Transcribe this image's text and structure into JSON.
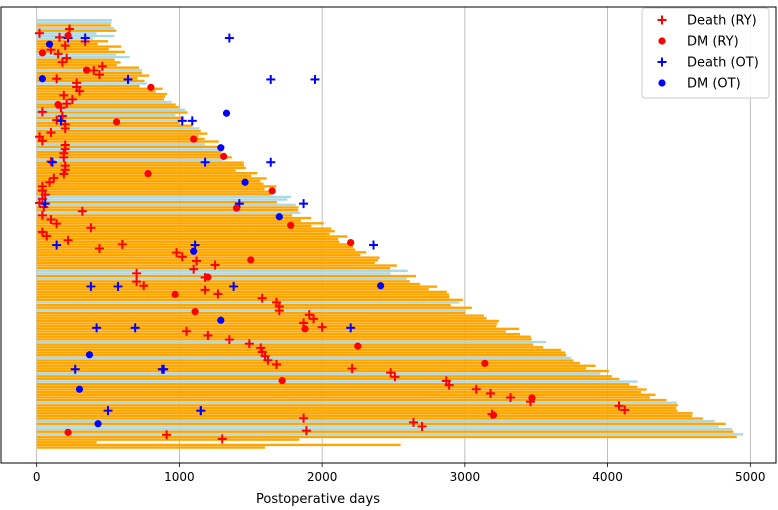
{
  "chart_data": {
    "type": "horizontal-bar-event-plot",
    "xlabel": "Postoperative days",
    "xlim": [
      -250,
      5180
    ],
    "ylim": [
      0,
      1
    ],
    "xticks": [
      0,
      1000,
      2000,
      3000,
      4000,
      5000
    ],
    "xtick_labels": [
      "0",
      "1000",
      "2000",
      "3000",
      "4000",
      "5000"
    ],
    "grid_x": true,
    "legend_position": "top-right",
    "legend": [
      {
        "label": "Death (RY)",
        "marker": "plus",
        "color": "#ff0000"
      },
      {
        "label": "DM (RY)",
        "marker": "dot",
        "color": "#ff0000"
      },
      {
        "label": "Death (OT)",
        "marker": "plus",
        "color": "#0000ff"
      },
      {
        "label": "DM (OT)",
        "marker": "dot",
        "color": "#0000ff"
      }
    ],
    "series_colors": {
      "RY": "#ffa500",
      "OT": "#add8e6"
    },
    "bars_note": "Approximately 420 follow-up bars (orange = RY, light blue = OT) stacked from top to bottom; follow-up length rises from about 300 to 4950 days.",
    "death_ry_days": [
      230,
      20,
      160,
      340,
      200,
      100,
      150,
      210,
      180,
      460,
      400,
      440,
      140,
      280,
      280,
      300,
      190,
      250,
      210,
      170,
      40,
      180,
      140,
      200,
      200,
      100,
      20,
      40,
      200,
      200,
      190,
      190,
      100,
      200,
      200,
      190,
      120,
      90,
      40,
      40,
      60,
      40,
      20,
      50,
      320,
      40,
      100,
      140,
      380,
      40,
      70,
      220,
      600,
      440,
      980,
      1020,
      1120,
      1250,
      1100,
      700,
      1180,
      700,
      750,
      1180,
      1270,
      1580,
      1680,
      1700,
      1700,
      1910,
      1940,
      1870,
      2000,
      1050,
      1200,
      1350,
      1490,
      1570,
      1580,
      1600,
      1620,
      1680,
      2210,
      2480,
      2510,
      2870,
      2890,
      3080,
      3180,
      3320,
      3460,
      4080,
      4120,
      3190,
      1870,
      2640,
      2700,
      1890,
      910,
      1300
    ],
    "dm_ry_days": [
      220,
      40,
      350,
      800,
      150,
      560,
      1100,
      1310,
      780,
      1650,
      1400,
      1780,
      2200,
      1500,
      1200,
      970,
      1110,
      1880,
      2250,
      3140,
      1720,
      3470,
      3200,
      220
    ],
    "death_ot_days": [
      340,
      640,
      170,
      1640,
      1870,
      2360,
      570,
      690,
      880,
      1150,
      1350,
      1640,
      1090,
      110,
      60,
      1110,
      1380,
      2200,
      890,
      1150,
      220,
      1950,
      1020,
      1180,
      1420,
      140,
      380,
      420,
      270,
      500
    ],
    "dm_ot_days": [
      90,
      40,
      1330,
      1290,
      1460,
      1700,
      1100,
      2410,
      1290,
      370,
      300,
      430
    ],
    "bar_rows": [
      {
        "length": 527,
        "color": "OT"
      },
      {
        "length": 523,
        "color": "OT"
      },
      {
        "length": 519,
        "color": "RY"
      },
      {
        "length": 543,
        "color": "OT"
      },
      {
        "length": 558,
        "color": "RY"
      },
      {
        "length": 419,
        "color": "OT"
      },
      {
        "length": 544,
        "color": "OT"
      },
      {
        "length": 397,
        "color": "OT"
      },
      {
        "length": 500,
        "color": "RY"
      },
      {
        "length": 428,
        "color": "RY"
      },
      {
        "length": 592,
        "color": "RY"
      },
      {
        "length": 505,
        "color": "RY"
      },
      {
        "length": 618,
        "color": "RY"
      },
      {
        "length": 558,
        "color": "OT"
      },
      {
        "length": 651,
        "color": "OT"
      },
      {
        "length": 546,
        "color": "RY"
      },
      {
        "length": 588,
        "color": "RY"
      },
      {
        "length": 561,
        "color": "RY"
      },
      {
        "length": 717,
        "color": "RY"
      },
      {
        "length": 737,
        "color": "OT"
      },
      {
        "length": 737,
        "color": "RY"
      },
      {
        "length": 788,
        "color": "RY"
      },
      {
        "length": 706,
        "color": "RY"
      },
      {
        "length": 755,
        "color": "RY"
      },
      {
        "length": 772,
        "color": "OT"
      },
      {
        "length": 721,
        "color": "RY"
      },
      {
        "length": 882,
        "color": "RY"
      },
      {
        "length": 834,
        "color": "RY"
      },
      {
        "length": 913,
        "color": "RY"
      },
      {
        "length": 899,
        "color": "RY"
      },
      {
        "length": 892,
        "color": "RY"
      },
      {
        "length": 945,
        "color": "OT"
      },
      {
        "length": 974,
        "color": "RY"
      },
      {
        "length": 996,
        "color": "RY"
      },
      {
        "length": 1042,
        "color": "OT"
      },
      {
        "length": 1057,
        "color": "RY"
      },
      {
        "length": 972,
        "color": "OT"
      },
      {
        "length": 1030,
        "color": "RY"
      },
      {
        "length": 1038,
        "color": "OT"
      },
      {
        "length": 996,
        "color": "RY"
      },
      {
        "length": 1092,
        "color": "RY"
      },
      {
        "length": 1141,
        "color": "OT"
      },
      {
        "length": 1150,
        "color": "RY"
      },
      {
        "length": 1196,
        "color": "RY"
      },
      {
        "length": 1135,
        "color": "RY"
      },
      {
        "length": 1177,
        "color": "RY"
      },
      {
        "length": 1275,
        "color": "RY"
      },
      {
        "length": 1179,
        "color": "OT"
      },
      {
        "length": 1316,
        "color": "RY"
      },
      {
        "length": 1308,
        "color": "OT"
      },
      {
        "length": 1293,
        "color": "RY"
      },
      {
        "length": 1322,
        "color": "RY"
      },
      {
        "length": 1367,
        "color": "RY"
      },
      {
        "length": 1308,
        "color": "OT"
      },
      {
        "length": 1451,
        "color": "RY"
      },
      {
        "length": 1452,
        "color": "RY"
      },
      {
        "length": 1466,
        "color": "RY"
      },
      {
        "length": 1394,
        "color": "RY"
      },
      {
        "length": 1545,
        "color": "RY"
      },
      {
        "length": 1503,
        "color": "RY"
      },
      {
        "length": 1611,
        "color": "RY"
      },
      {
        "length": 1567,
        "color": "RY"
      },
      {
        "length": 1589,
        "color": "RY"
      },
      {
        "length": 1679,
        "color": "RY"
      },
      {
        "length": 1596,
        "color": "RY"
      },
      {
        "length": 1656,
        "color": "RY"
      },
      {
        "length": 1644,
        "color": "RY"
      },
      {
        "length": 1783,
        "color": "OT"
      },
      {
        "length": 1756,
        "color": "OT"
      },
      {
        "length": 1683,
        "color": "RY"
      },
      {
        "length": 1815,
        "color": "OT"
      },
      {
        "length": 1834,
        "color": "RY"
      },
      {
        "length": 1832,
        "color": "RY"
      },
      {
        "length": 1848,
        "color": "OT"
      },
      {
        "length": 1790,
        "color": "RY"
      },
      {
        "length": 1923,
        "color": "RY"
      },
      {
        "length": 1851,
        "color": "RY"
      },
      {
        "length": 2012,
        "color": "RY"
      },
      {
        "length": 1925,
        "color": "RY"
      },
      {
        "length": 2064,
        "color": "RY"
      },
      {
        "length": 2088,
        "color": "RY"
      },
      {
        "length": 2052,
        "color": "RY"
      },
      {
        "length": 2178,
        "color": "RY"
      },
      {
        "length": 2111,
        "color": "RY"
      },
      {
        "length": 2121,
        "color": "RY"
      },
      {
        "length": 2214,
        "color": "RY"
      },
      {
        "length": 2217,
        "color": "RY"
      },
      {
        "length": 2232,
        "color": "RY"
      },
      {
        "length": 2309,
        "color": "RY"
      },
      {
        "length": 2268,
        "color": "RY"
      },
      {
        "length": 2402,
        "color": "RY"
      },
      {
        "length": 2391,
        "color": "RY"
      },
      {
        "length": 2369,
        "color": "RY"
      },
      {
        "length": 2524,
        "color": "RY"
      },
      {
        "length": 2477,
        "color": "RY"
      },
      {
        "length": 2600,
        "color": "OT"
      },
      {
        "length": 2479,
        "color": "OT"
      },
      {
        "length": 2658,
        "color": "RY"
      },
      {
        "length": 2592,
        "color": "OT"
      },
      {
        "length": 2614,
        "color": "RY"
      },
      {
        "length": 2687,
        "color": "RY"
      },
      {
        "length": 2805,
        "color": "RY"
      },
      {
        "length": 2747,
        "color": "RY"
      },
      {
        "length": 2873,
        "color": "RY"
      },
      {
        "length": 2889,
        "color": "RY"
      },
      {
        "length": 2891,
        "color": "RY"
      },
      {
        "length": 2986,
        "color": "RY"
      },
      {
        "length": 2962,
        "color": "OT"
      },
      {
        "length": 2901,
        "color": "RY"
      },
      {
        "length": 3049,
        "color": "RY"
      },
      {
        "length": 3009,
        "color": "OT"
      },
      {
        "length": 3004,
        "color": "RY"
      },
      {
        "length": 3134,
        "color": "RY"
      },
      {
        "length": 3152,
        "color": "RY"
      },
      {
        "length": 3239,
        "color": "RY"
      },
      {
        "length": 3227,
        "color": "RY"
      },
      {
        "length": 3220,
        "color": "RY"
      },
      {
        "length": 3380,
        "color": "RY"
      },
      {
        "length": 3287,
        "color": "RY"
      },
      {
        "length": 3387,
        "color": "RY"
      },
      {
        "length": 3462,
        "color": "RY"
      },
      {
        "length": 3468,
        "color": "RY"
      },
      {
        "length": 3570,
        "color": "OT"
      },
      {
        "length": 3478,
        "color": "RY"
      },
      {
        "length": 3549,
        "color": "RY"
      },
      {
        "length": 3674,
        "color": "RY"
      },
      {
        "length": 3705,
        "color": "RY"
      },
      {
        "length": 3711,
        "color": "RY"
      },
      {
        "length": 3745,
        "color": "OT"
      },
      {
        "length": 3761,
        "color": "RY"
      },
      {
        "length": 3806,
        "color": "RY"
      },
      {
        "length": 3916,
        "color": "RY"
      },
      {
        "length": 3848,
        "color": "RY"
      },
      {
        "length": 4009,
        "color": "RY"
      },
      {
        "length": 3950,
        "color": "OT"
      },
      {
        "length": 4031,
        "color": "RY"
      },
      {
        "length": 4082,
        "color": "RY"
      },
      {
        "length": 4211,
        "color": "OT"
      },
      {
        "length": 4152,
        "color": "RY"
      },
      {
        "length": 4210,
        "color": "RY"
      },
      {
        "length": 4273,
        "color": "RY"
      },
      {
        "length": 4234,
        "color": "RY"
      },
      {
        "length": 4336,
        "color": "RY"
      },
      {
        "length": 4296,
        "color": "RY"
      },
      {
        "length": 4413,
        "color": "RY"
      },
      {
        "length": 4486,
        "color": "OT"
      },
      {
        "length": 4494,
        "color": "RY"
      },
      {
        "length": 4480,
        "color": "RY"
      },
      {
        "length": 4490,
        "color": "RY"
      },
      {
        "length": 4596,
        "color": "RY"
      },
      {
        "length": 4593,
        "color": "RY"
      },
      {
        "length": 4668,
        "color": "RY"
      },
      {
        "length": 4750,
        "color": "OT"
      },
      {
        "length": 4827,
        "color": "RY"
      },
      {
        "length": 4779,
        "color": "OT"
      },
      {
        "length": 4871,
        "color": "OT"
      },
      {
        "length": 4881,
        "color": "RY"
      },
      {
        "length": 4950,
        "color": "OT"
      },
      {
        "length": 4904,
        "color": "RY"
      },
      {
        "length": 1840,
        "color": "RY"
      },
      {
        "length": 420,
        "color": "RY"
      },
      {
        "length": 2550,
        "color": "RY"
      },
      {
        "length": 1600,
        "color": "RY"
      }
    ]
  }
}
